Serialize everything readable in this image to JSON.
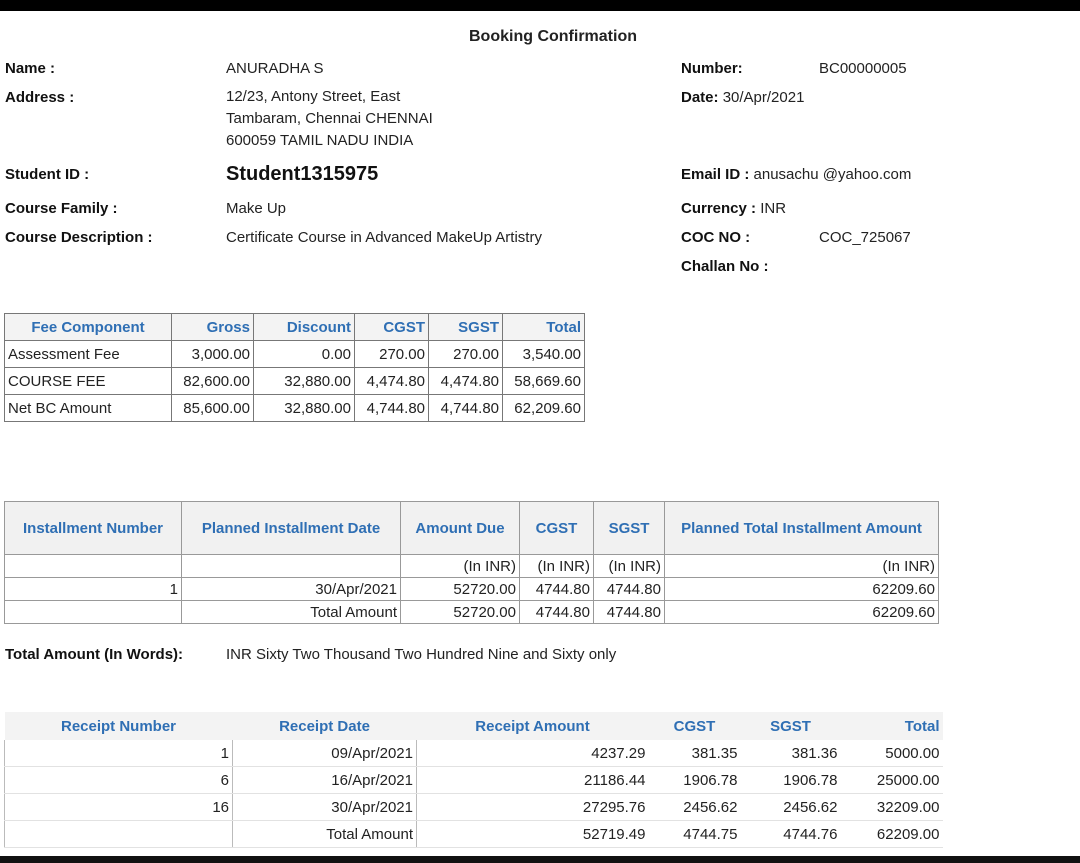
{
  "title": "Booking Confirmation",
  "info": {
    "name_label": "Name :",
    "name": "ANURADHA S",
    "address_label": "Address :",
    "address": "12/23, Antony Street, East Tambaram, Chennai CHENNAI 600059 TAMIL NADU INDIA",
    "student_id_label": "Student ID :",
    "student_id": "Student1315975",
    "course_family_label": "Course Family :",
    "course_family": "Make Up",
    "course_desc_label": "Course Description :",
    "course_desc": "Certificate Course in Advanced MakeUp Artistry",
    "number_label": "Number:",
    "number": "BC00000005",
    "date_label": "Date:",
    "date": "30/Apr/2021",
    "email_label": "Email ID :",
    "email": "anusachu @yahoo.com",
    "currency_label": "Currency :",
    "currency": "INR",
    "coc_label": "COC NO :",
    "coc": "COC_725067",
    "challan_label": "Challan No :"
  },
  "fee": {
    "headers": [
      "Fee Component",
      "Gross",
      "Discount",
      "CGST",
      "SGST",
      "Total"
    ],
    "rows": [
      [
        "Assessment Fee",
        "3,000.00",
        "0.00",
        "270.00",
        "270.00",
        "3,540.00"
      ],
      [
        "COURSE FEE",
        "82,600.00",
        "32,880.00",
        "4,474.80",
        "4,474.80",
        "58,669.60"
      ],
      [
        "Net BC Amount",
        "85,600.00",
        "32,880.00",
        "4,744.80",
        "4,744.80",
        "62,209.60"
      ]
    ]
  },
  "installment": {
    "headers": [
      "Installment Number",
      "Planned Installment Date",
      "Amount Due",
      "CGST",
      "SGST",
      "Planned Total Installment Amount"
    ],
    "units": [
      "",
      "",
      "(In INR)",
      "(In INR)",
      "(In INR)",
      "(In INR)"
    ],
    "rows": [
      [
        "1",
        "30/Apr/2021",
        "52720.00",
        "4744.80",
        "4744.80",
        "62209.60"
      ],
      [
        "",
        "Total Amount",
        "52720.00",
        "4744.80",
        "4744.80",
        "62209.60"
      ]
    ]
  },
  "total_words_label": "Total Amount (In Words):",
  "total_words": "INR Sixty Two Thousand Two Hundred Nine and Sixty only",
  "receipts": {
    "headers": [
      "Receipt Number",
      "Receipt Date",
      "Receipt Amount",
      "CGST",
      "SGST",
      "Total"
    ],
    "rows": [
      [
        "1",
        "09/Apr/2021",
        "4237.29",
        "381.35",
        "381.36",
        "5000.00"
      ],
      [
        "6",
        "16/Apr/2021",
        "21186.44",
        "1906.78",
        "1906.78",
        "25000.00"
      ],
      [
        "16",
        "30/Apr/2021",
        "27295.76",
        "2456.62",
        "2456.62",
        "32209.00"
      ],
      [
        "",
        "Total Amount",
        "52719.49",
        "4744.75",
        "4744.76",
        "62209.00"
      ]
    ]
  }
}
